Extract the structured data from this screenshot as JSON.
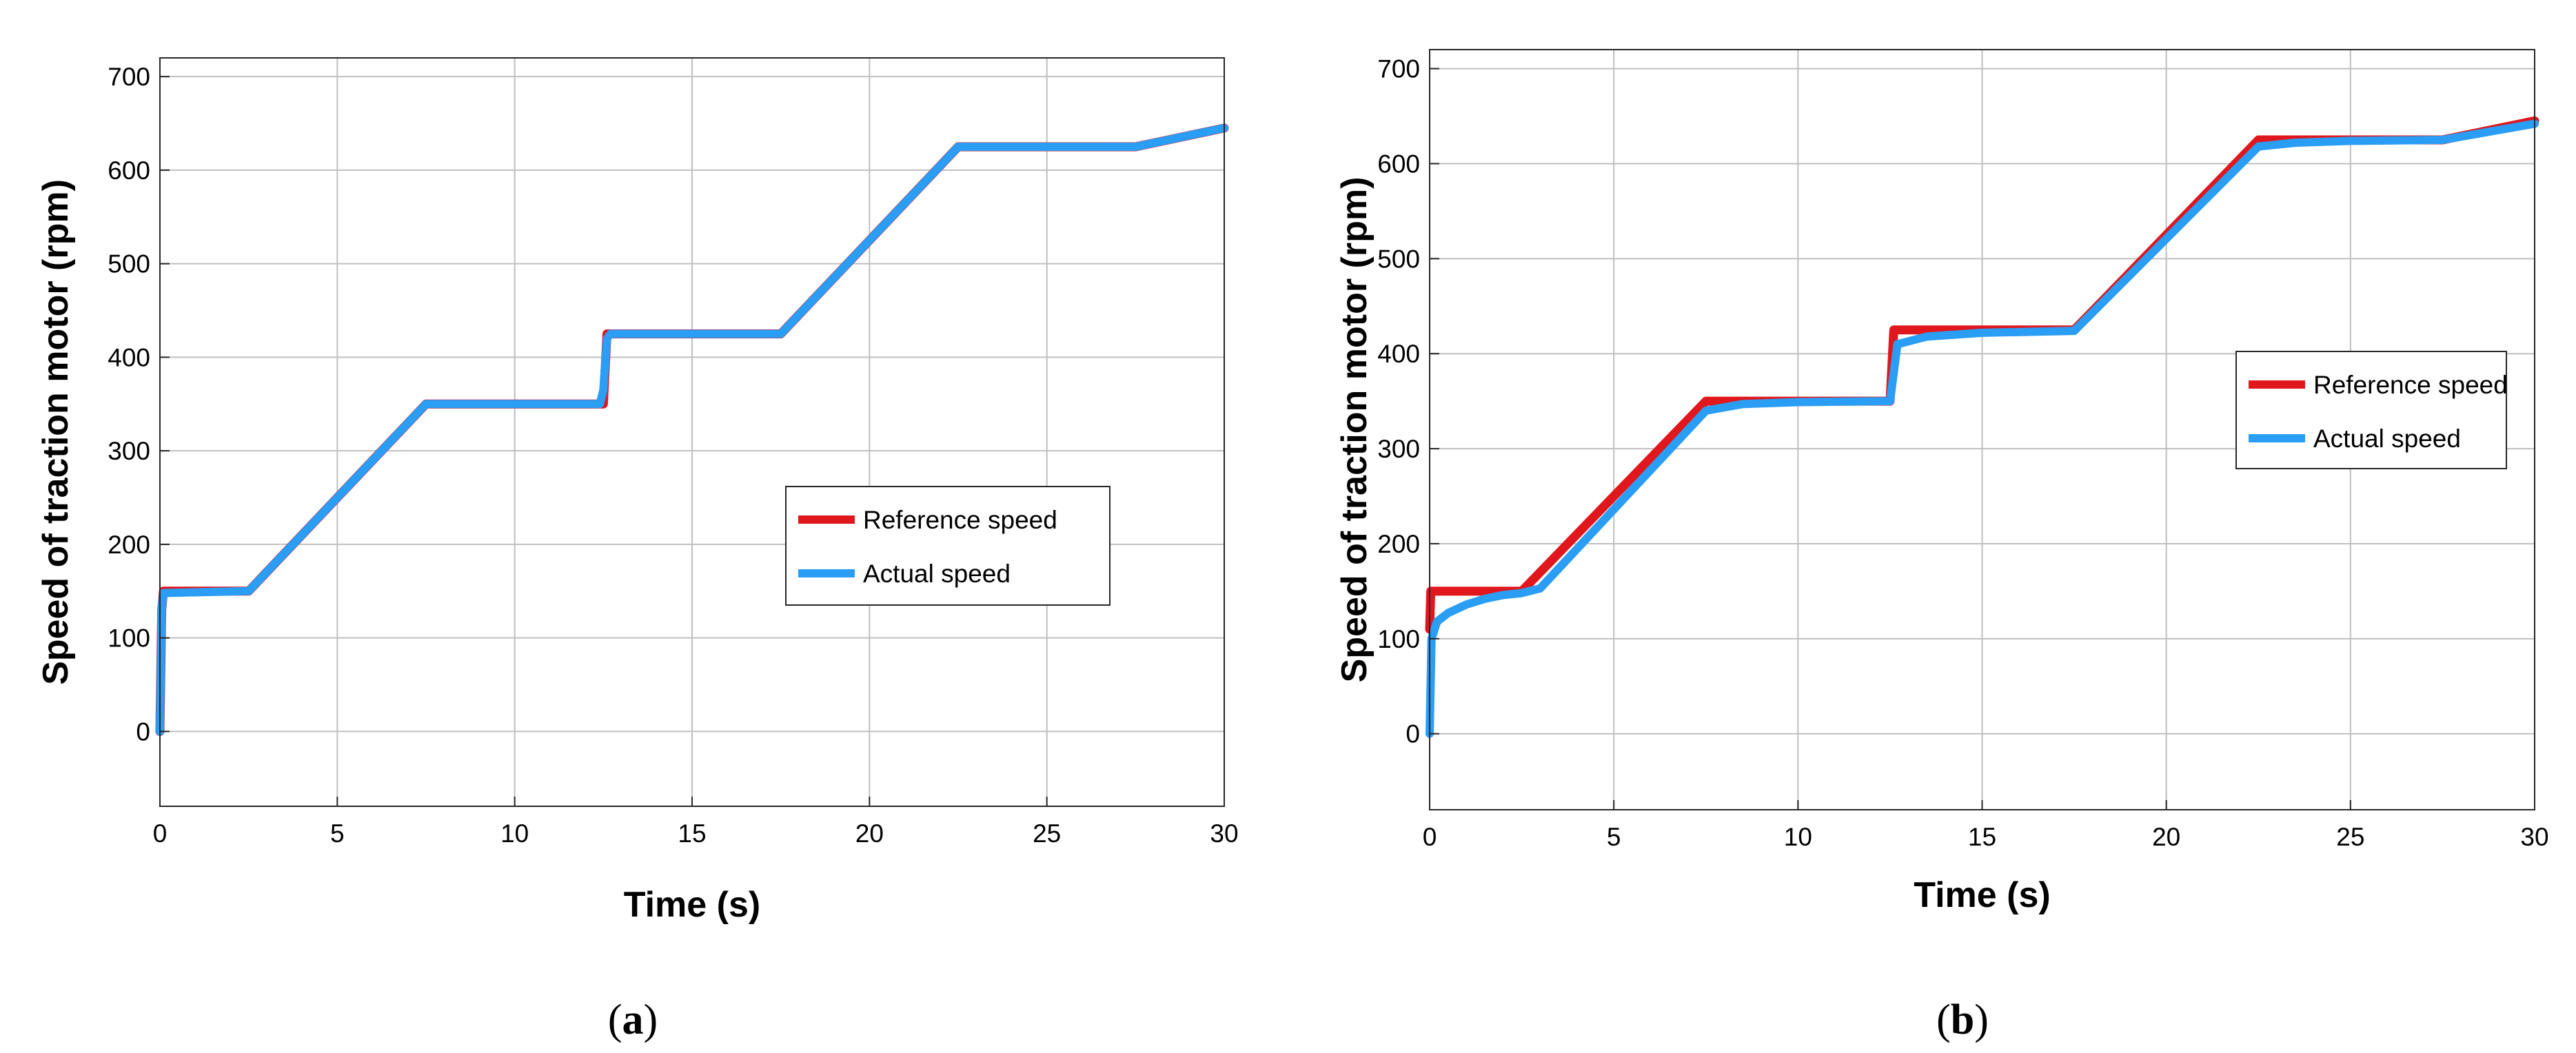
{
  "colors": {
    "reference": "#e0171c",
    "actual": "#2a9df4",
    "grid": "#bfbfbf"
  },
  "chart_data": [
    {
      "type": "line",
      "caption": {
        "open": "(",
        "letter": "a",
        "close": ")"
      },
      "xlabel": "Time (s)",
      "ylabel": "Speed of traction motor (rpm)",
      "xlim": [
        0,
        30
      ],
      "ylim": [
        -80,
        720
      ],
      "xticks": [
        0,
        5,
        10,
        15,
        20,
        25,
        30
      ],
      "yticks": [
        0,
        100,
        200,
        300,
        400,
        500,
        600,
        700
      ],
      "grid": true,
      "legend_position": "center-right",
      "series": [
        {
          "name": "Reference speed",
          "color": "#e0171c",
          "x": [
            0,
            0.05,
            0.1,
            2.5,
            7.5,
            12.5,
            12.6,
            17.5,
            22.5,
            27.5,
            30
          ],
          "y": [
            0,
            130,
            150,
            150,
            350,
            350,
            425,
            425,
            625,
            625,
            645
          ]
        },
        {
          "name": "Actual speed",
          "color": "#2a9df4",
          "x": [
            0,
            0.05,
            0.1,
            2.5,
            7.5,
            12.4,
            12.5,
            12.6,
            12.7,
            17.5,
            22.5,
            27.5,
            30
          ],
          "y": [
            0,
            130,
            148,
            150,
            350,
            350,
            365,
            420,
            425,
            425,
            625,
            625,
            645
          ]
        }
      ]
    },
    {
      "type": "line",
      "caption": {
        "open": "(",
        "letter": "b",
        "close": ")"
      },
      "xlabel": "Time (s)",
      "ylabel": "Speed of traction motor (rpm)",
      "xlim": [
        0,
        30
      ],
      "ylim": [
        -80,
        720
      ],
      "xticks": [
        0,
        5,
        10,
        15,
        20,
        25,
        30
      ],
      "yticks": [
        0,
        100,
        200,
        300,
        400,
        500,
        600,
        700
      ],
      "grid": true,
      "legend_position": "center-right",
      "series": [
        {
          "name": "Reference speed",
          "color": "#e0171c",
          "x": [
            0,
            0.03,
            0.1,
            2.5,
            7.5,
            12.5,
            12.6,
            17.5,
            22.5,
            27.5,
            30
          ],
          "y": [
            110,
            150,
            150,
            150,
            350,
            350,
            425,
            425,
            625,
            625,
            645
          ]
        },
        {
          "name": "Actual speed",
          "color": "#2a9df4",
          "x": [
            0,
            0.05,
            0.2,
            0.5,
            1.0,
            1.5,
            2.0,
            2.5,
            3.0,
            7.5,
            8.5,
            10,
            12.5,
            12.7,
            13.5,
            15,
            17.5,
            22.5,
            23.5,
            25,
            27.5,
            30
          ],
          "y": [
            0,
            100,
            118,
            127,
            136,
            142,
            146,
            148,
            153,
            340,
            347,
            349,
            350,
            410,
            418,
            422,
            424,
            618,
            622,
            624,
            625,
            642
          ]
        }
      ]
    }
  ]
}
